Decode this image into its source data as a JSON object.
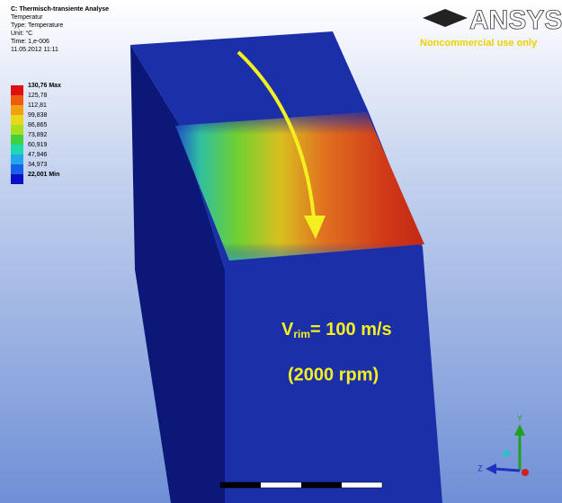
{
  "header": {
    "title": "C: Thermisch-transiente Analyse",
    "lines": [
      "Temperatur",
      "Type: Temperature",
      "Unit: °C",
      "Time: 1,e-006",
      "11.05.2012 11:11"
    ]
  },
  "legend": {
    "labels": [
      "130,76 Max",
      "125,78",
      "112,81",
      "99,838",
      "86,865",
      "73,892",
      "60,919",
      "47,946",
      "34,973",
      "22,001 Min"
    ]
  },
  "logo": {
    "name": "ANSYS",
    "note": "Noncommercial use only"
  },
  "annotation": {
    "symbol": "V",
    "subscript": "rim",
    "rest": "= 100 m/s",
    "speed": "(2000 rpm)"
  },
  "triad": {
    "y": "Y",
    "z": "Z"
  }
}
